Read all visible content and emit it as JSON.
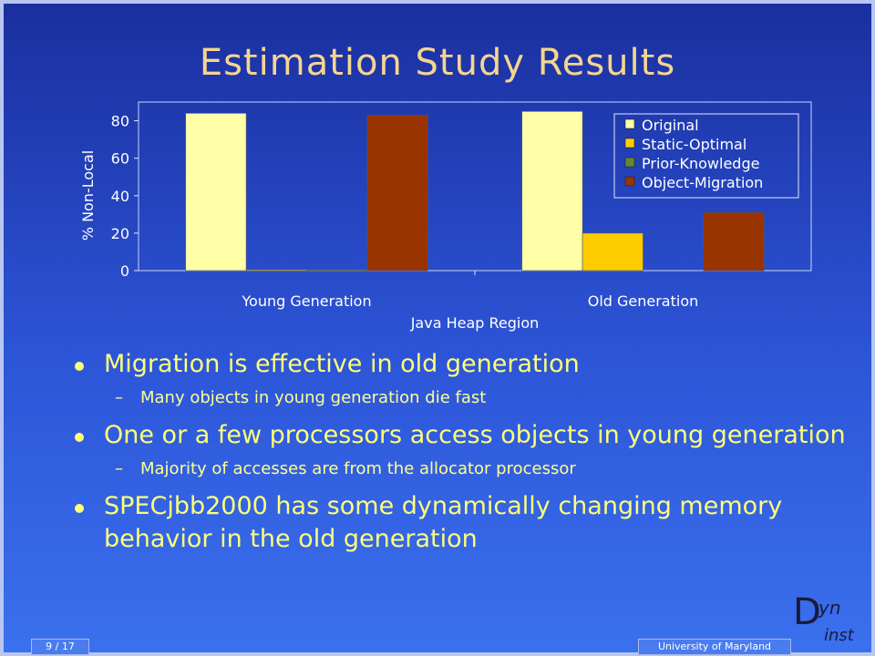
{
  "slide": {
    "title": "Estimation Study Results",
    "page_number": "9 / 17",
    "institution": "University of Maryland",
    "logo": {
      "big": "D",
      "top": "yn",
      "bottom": "inst"
    }
  },
  "bullets": [
    {
      "text": "Migration is effective in old generation",
      "sub": [
        "Many objects in young generation die fast"
      ]
    },
    {
      "text": "One or a few processors access objects in young generation",
      "sub": [
        "Majority of accesses are from the allocator processor"
      ]
    },
    {
      "text": "SPECjbb2000 has some dynamically changing memory behavior in the old generation",
      "sub": []
    }
  ],
  "chart_data": {
    "type": "bar",
    "categories": [
      "Young Generation",
      "Old Generation"
    ],
    "series": [
      {
        "name": "Original",
        "values": [
          84,
          85
        ],
        "color": "#ffffa8"
      },
      {
        "name": "Static-Optimal",
        "values": [
          0.5,
          20
        ],
        "color": "#ffcc00"
      },
      {
        "name": "Prior-Knowledge",
        "values": [
          0.5,
          0
        ],
        "color": "#668833"
      },
      {
        "name": "Object-Migration",
        "values": [
          83,
          31
        ],
        "color": "#993300"
      }
    ],
    "xlabel": "Java Heap Region",
    "ylabel": "% Non-Local",
    "ylim": [
      0,
      90
    ],
    "yticks": [
      0,
      20,
      40,
      60,
      80
    ],
    "legend_position": "top-right",
    "grid": false
  }
}
